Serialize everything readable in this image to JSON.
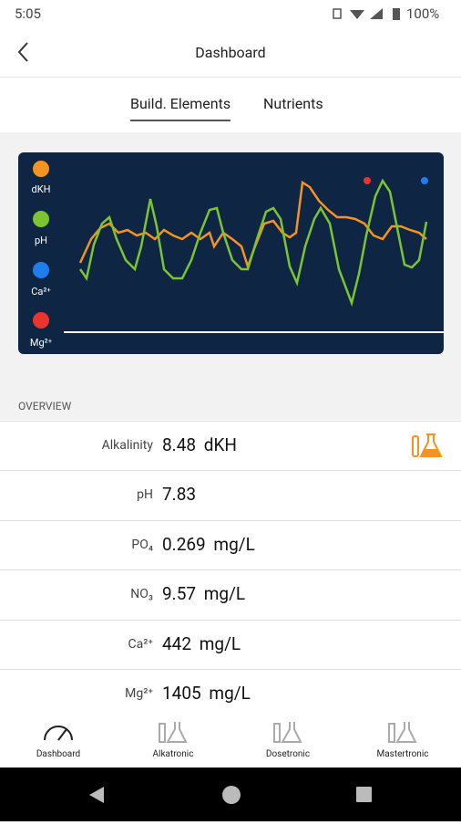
{
  "status": {
    "time": "5:05",
    "battery": "100%"
  },
  "header": {
    "title": "Dashboard"
  },
  "tabs": [
    "Build. Elements",
    "Nutrients"
  ],
  "legend": [
    "dKH",
    "pH",
    "Ca²⁺",
    "Mg²⁺"
  ],
  "section": "OVERVIEW",
  "rows": [
    {
      "label": "Alkalinity",
      "value": "8.48 dKH"
    },
    {
      "label": "pH",
      "value": "7.83"
    },
    {
      "label": "PO₄",
      "value": "0.269 mg/L"
    },
    {
      "label": "NO₃",
      "value": "9.57 mg/L"
    },
    {
      "label": "Ca²⁺",
      "value": "442 mg/L"
    },
    {
      "label": "Mg²⁺",
      "value": "1405 mg/L"
    }
  ],
  "nav": [
    "Dashboard",
    "Alkatronic",
    "Dosetronic",
    "Mastertronic"
  ]
}
